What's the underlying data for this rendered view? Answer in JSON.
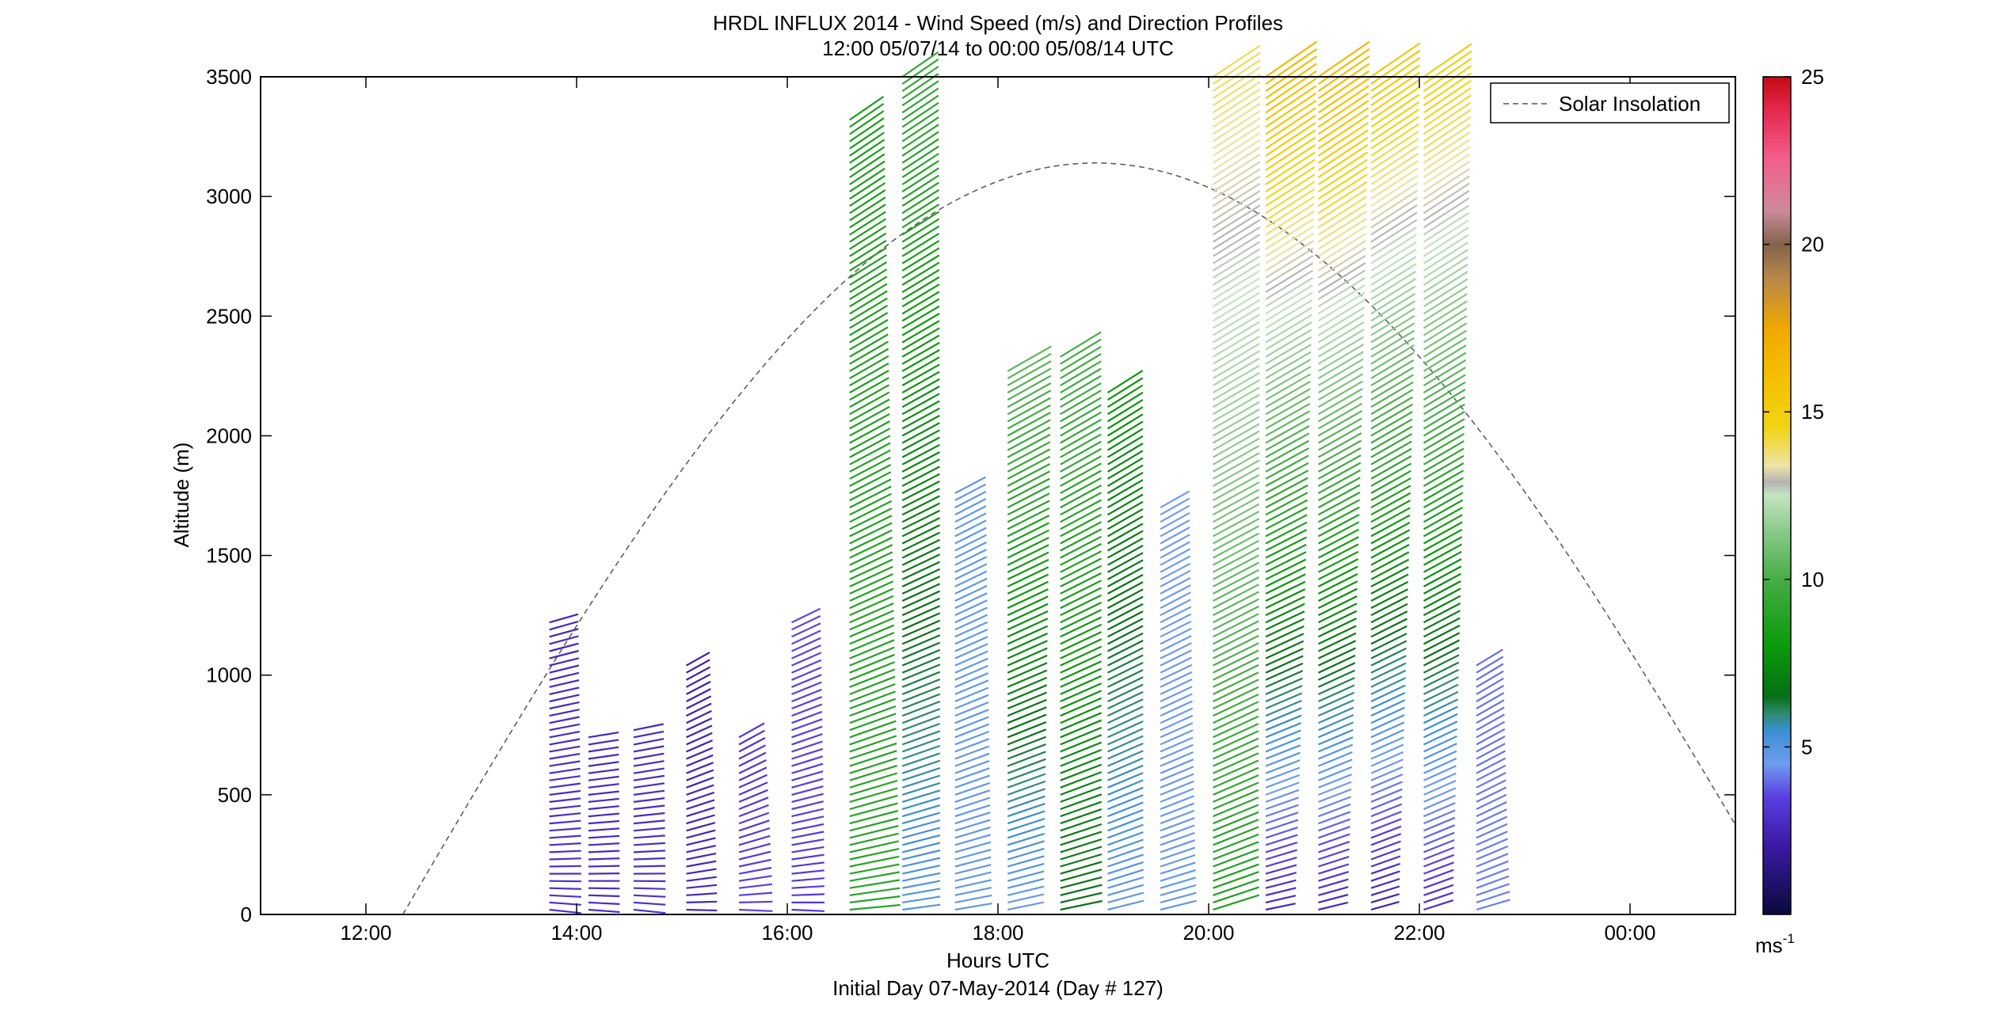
{
  "chart_data": {
    "type": "scatter",
    "title": "HRDL INFLUX 2014 - Wind Speed (m/s) and Direction Profiles",
    "subtitle": "12:00 05/07/14 to 00:00 05/08/14  UTC",
    "xlabel": "Hours UTC",
    "xlabel2": "Initial Day 07-May-2014 (Day # 127)",
    "ylabel": "Altitude (m)",
    "xlim_hours_utc": [
      11.0,
      25.0
    ],
    "x_ticks": [
      {
        "value": 12,
        "label": "12:00"
      },
      {
        "value": 14,
        "label": "14:00"
      },
      {
        "value": 16,
        "label": "16:00"
      },
      {
        "value": 18,
        "label": "18:00"
      },
      {
        "value": 20,
        "label": "20:00"
      },
      {
        "value": 22,
        "label": "22:00"
      },
      {
        "value": 24,
        "label": "00:00"
      }
    ],
    "ylim": [
      0,
      3500
    ],
    "y_ticks": [
      {
        "value": 0,
        "label": "0"
      },
      {
        "value": 500,
        "label": "500"
      },
      {
        "value": 1000,
        "label": "1000"
      },
      {
        "value": 1500,
        "label": "1500"
      },
      {
        "value": 2000,
        "label": "2000"
      },
      {
        "value": 2500,
        "label": "2500"
      },
      {
        "value": 3000,
        "label": "3000"
      },
      {
        "value": 3500,
        "label": "3500"
      }
    ],
    "grid": false,
    "legend": {
      "placement": "top-right",
      "entries": [
        "Solar Insolation"
      ]
    },
    "colorbar": {
      "range": [
        0,
        25
      ],
      "ticks": [
        {
          "value": 5,
          "label": "5"
        },
        {
          "value": 10,
          "label": "10"
        },
        {
          "value": 15,
          "label": "15"
        },
        {
          "value": 20,
          "label": "20"
        },
        {
          "value": 25,
          "label": "25"
        }
      ],
      "unit_label": "ms",
      "unit_exponent": "-1",
      "stops": [
        {
          "v": 0,
          "color": "#0a0a3c"
        },
        {
          "v": 2,
          "color": "#3a18a0"
        },
        {
          "v": 3.5,
          "color": "#5a3ee0"
        },
        {
          "v": 4.5,
          "color": "#6f9df0"
        },
        {
          "v": 5.5,
          "color": "#3a8fd0"
        },
        {
          "v": 6,
          "color": "#2e8a70"
        },
        {
          "v": 6.5,
          "color": "#066f16"
        },
        {
          "v": 8,
          "color": "#0a9a0a"
        },
        {
          "v": 10,
          "color": "#46ad46"
        },
        {
          "v": 11.5,
          "color": "#8ccb8c"
        },
        {
          "v": 12.5,
          "color": "#c6e4c2"
        },
        {
          "v": 12.9,
          "color": "#b4b4b4"
        },
        {
          "v": 13.4,
          "color": "#eee4a8"
        },
        {
          "v": 14.5,
          "color": "#f2d414"
        },
        {
          "v": 16,
          "color": "#f4c000"
        },
        {
          "v": 17.5,
          "color": "#f0a800"
        },
        {
          "v": 19,
          "color": "#b8864a"
        },
        {
          "v": 20,
          "color": "#82644a"
        },
        {
          "v": 21,
          "color": "#cc8a9a"
        },
        {
          "v": 22.5,
          "color": "#f2608c"
        },
        {
          "v": 24,
          "color": "#e6284e"
        },
        {
          "v": 25,
          "color": "#c40a14"
        }
      ]
    },
    "solar_insolation": {
      "sunrise_hour": 12.35,
      "sunset_hour": 25.5,
      "peak_altitude": 3140
    },
    "profiles": [
      {
        "t": 13.75,
        "top": 1230,
        "speed_low": 3.0,
        "speed_high": 2.5,
        "dir_low": 160,
        "dir_high": 215
      },
      {
        "t": 14.12,
        "top": 760,
        "speed_low": 2.8,
        "speed_high": 2.6,
        "dir_low": 165,
        "dir_high": 200
      },
      {
        "t": 14.55,
        "top": 780,
        "speed_low": 3.0,
        "speed_high": 2.6,
        "dir_low": 160,
        "dir_high": 205
      },
      {
        "t": 15.05,
        "top": 1060,
        "speed_low": 2.6,
        "speed_high": 2.2,
        "dir_low": 165,
        "dir_high": 250
      },
      {
        "t": 15.55,
        "top": 760,
        "speed_low": 3.5,
        "speed_high": 3.0,
        "dir_low": 160,
        "dir_high": 250
      },
      {
        "t": 16.05,
        "top": 1240,
        "speed_low": 3.2,
        "speed_high": 3.6,
        "dir_low": 165,
        "dir_high": 240
      },
      {
        "t": 16.6,
        "top": 3320,
        "speed_low": 9.0,
        "speed_high": 8.5,
        "dir_low": 185,
        "dir_high": 265
      },
      {
        "t": 17.1,
        "top": 3500,
        "speed_low": 5.0,
        "speed_high": 9.5,
        "dir_low": 190,
        "dir_high": 265
      },
      {
        "t": 17.6,
        "top": 1780,
        "speed_low": 4.8,
        "speed_high": 4.8,
        "dir_low": 195,
        "dir_high": 245
      },
      {
        "t": 18.1,
        "top": 2280,
        "speed_low": 4.6,
        "speed_high": 10.5,
        "dir_low": 200,
        "dir_high": 250
      },
      {
        "t": 18.6,
        "top": 2340,
        "speed_low": 6.5,
        "speed_high": 10.0,
        "dir_low": 200,
        "dir_high": 255
      },
      {
        "t": 19.05,
        "top": 2200,
        "speed_low": 4.8,
        "speed_high": 8.0,
        "dir_low": 205,
        "dir_high": 258
      },
      {
        "t": 19.55,
        "top": 1720,
        "speed_low": 4.8,
        "speed_high": 4.5,
        "dir_low": 205,
        "dir_high": 250
      },
      {
        "t": 20.05,
        "top": 3500,
        "speed_low": 8.5,
        "speed_high": 14.0,
        "dir_low": 215,
        "dir_high": 262
      },
      {
        "t": 20.55,
        "top": 3500,
        "speed_low": 2.5,
        "speed_high": 16.5,
        "dir_low": 200,
        "dir_high": 265
      },
      {
        "t": 21.05,
        "top": 3500,
        "speed_low": 2.5,
        "speed_high": 16.5,
        "dir_low": 205,
        "dir_high": 265
      },
      {
        "t": 21.55,
        "top": 3500,
        "speed_low": 2.2,
        "speed_high": 15.5,
        "dir_low": 210,
        "dir_high": 265
      },
      {
        "t": 22.05,
        "top": 3500,
        "speed_low": 2.8,
        "speed_high": 15.0,
        "dir_low": 215,
        "dir_high": 265
      },
      {
        "t": 22.55,
        "top": 1050,
        "speed_low": 4.2,
        "speed_high": 4.0,
        "dir_low": 210,
        "dir_high": 255
      }
    ]
  }
}
